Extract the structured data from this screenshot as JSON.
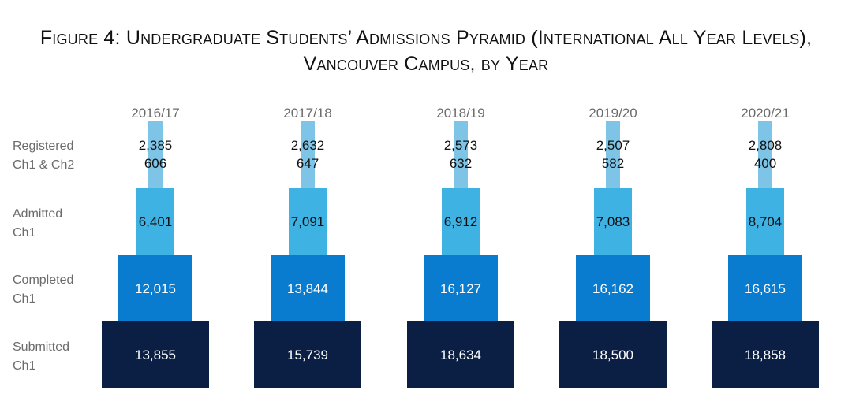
{
  "title": {
    "line1": "Figure 4: Undergraduate Students’ Admissions Pyramid (International All Year Levels),",
    "line2": "Vancouver Campus, by Year"
  },
  "colors": {
    "registered": "#7dc4e6",
    "admitted": "#3fb2e4",
    "completed": "#0a7cd0",
    "submitted": "#0b1f45",
    "text_dark": "#111111",
    "text_light": "#ffffff",
    "label_gray": "#6b6b6b"
  },
  "chart_data": {
    "type": "bar",
    "subtype": "stacked pyramid",
    "title": "Figure 4: Undergraduate Students’ Admissions Pyramid (International All Year Levels), Vancouver Campus, by Year",
    "categories": [
      "2016/17",
      "2017/18",
      "2018/19",
      "2019/20",
      "2020/21"
    ],
    "row_labels": [
      [
        "Registered",
        "Ch1 & Ch2"
      ],
      [
        "Admitted",
        "Ch1"
      ],
      [
        "Completed",
        "Ch1"
      ],
      [
        "Submitted",
        "Ch1"
      ]
    ],
    "series": [
      {
        "name": "Registered Ch1",
        "values": [
          2385,
          2632,
          2573,
          2507,
          2808
        ]
      },
      {
        "name": "Registered Ch2",
        "values": [
          606,
          647,
          632,
          582,
          400
        ]
      },
      {
        "name": "Admitted Ch1",
        "values": [
          6401,
          7091,
          6912,
          7083,
          8704
        ]
      },
      {
        "name": "Completed Ch1",
        "values": [
          12015,
          13844,
          16127,
          16162,
          16615
        ]
      },
      {
        "name": "Submitted Ch1",
        "values": [
          13855,
          15739,
          18634,
          18500,
          18858
        ]
      }
    ],
    "value_labels": {
      "registered_ch1": [
        "2,385",
        "2,632",
        "2,573",
        "2,507",
        "2,808"
      ],
      "registered_ch2": [
        "606",
        "647",
        "632",
        "582",
        "400"
      ],
      "admitted": [
        "6,401",
        "7,091",
        "6,912",
        "7,083",
        "8,704"
      ],
      "completed": [
        "12,015",
        "13,844",
        "16,127",
        "16,162",
        "16,615"
      ],
      "submitted": [
        "13,855",
        "15,739",
        "18,634",
        "18,500",
        "18,858"
      ]
    },
    "legend": "none",
    "grid": false
  }
}
